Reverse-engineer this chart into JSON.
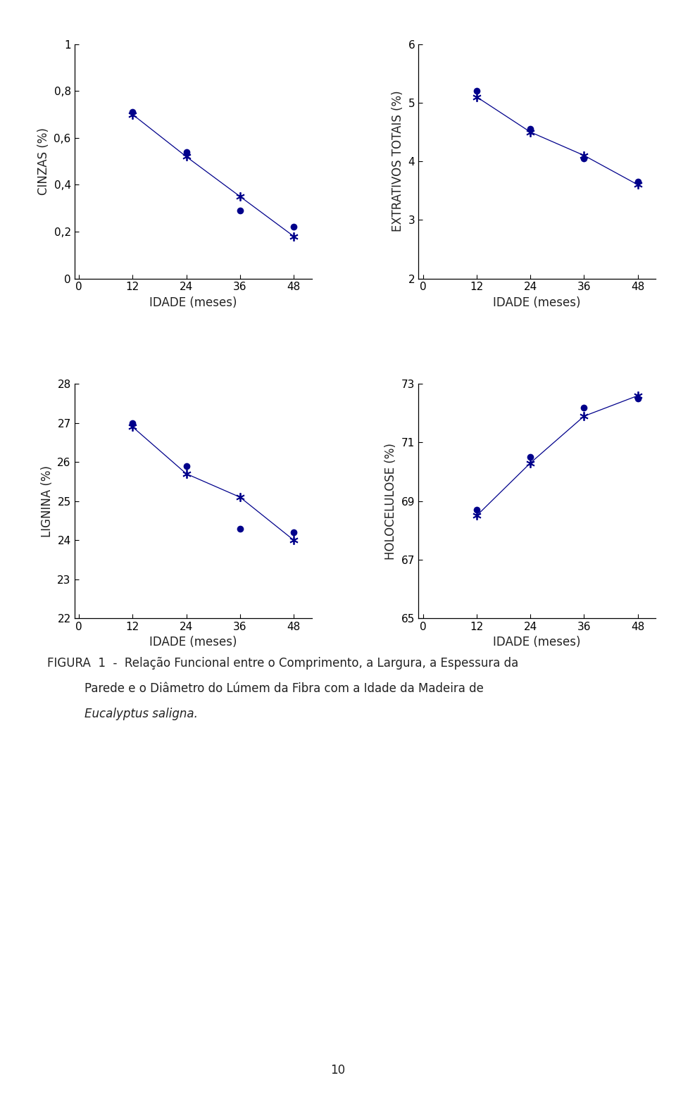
{
  "color": "#00008B",
  "x": [
    12,
    24,
    36,
    48
  ],
  "cinzas_dot": [
    0.71,
    0.54,
    0.29,
    0.22
  ],
  "cinzas_star": [
    0.7,
    0.52,
    0.35,
    0.18
  ],
  "cinzas_ylim": [
    0,
    1
  ],
  "cinzas_yticks": [
    0,
    0.2,
    0.4,
    0.6,
    0.8,
    1
  ],
  "cinzas_ylabel": "CINZAS (%)",
  "extrat_dot": [
    5.2,
    4.55,
    4.05,
    3.65
  ],
  "extrat_star": [
    5.1,
    4.5,
    4.1,
    3.6
  ],
  "extrat_ylim": [
    2,
    6
  ],
  "extrat_yticks": [
    2,
    3,
    4,
    5,
    6
  ],
  "extrat_ylabel": "EXTRATIVOS TOTAIS (%)",
  "lignina_dot": [
    27.0,
    25.9,
    24.3,
    24.2
  ],
  "lignina_star": [
    26.9,
    25.7,
    25.1,
    24.0
  ],
  "lignina_ylim": [
    22,
    28
  ],
  "lignina_yticks": [
    22,
    23,
    24,
    25,
    26,
    27,
    28
  ],
  "lignina_ylabel": "LIGNINA (%)",
  "holocel_dot": [
    68.7,
    70.5,
    72.2,
    72.5
  ],
  "holocel_star": [
    68.5,
    70.3,
    71.9,
    72.6
  ],
  "holocel_ylim": [
    65,
    73
  ],
  "holocel_yticks": [
    65,
    67,
    69,
    71,
    73
  ],
  "holocel_ylabel": "HOLOCELULOSE (%)",
  "xlabel": "IDADE (meses)",
  "xticks": [
    0,
    12,
    24,
    36,
    48
  ],
  "xlim": [
    -1,
    52
  ],
  "caption_line1": "FIGURA  1  -  Relação Funcional entre o Comprimento, a Largura, a Espessura da",
  "caption_line2": "Parede e o Diâmetro do Lúmem da Fibra com a Idade da Madeira de",
  "caption_line3": "Eucalyptus saligna.",
  "page_number": "10"
}
